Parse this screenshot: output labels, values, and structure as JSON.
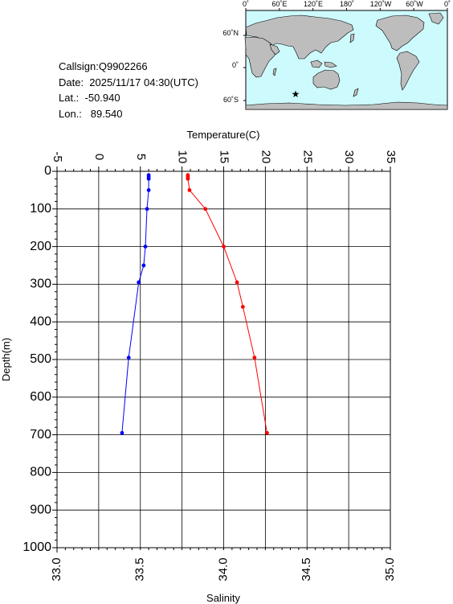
{
  "info": {
    "callsign": "Callsign:Q9902266",
    "date": "Date:  2025/11/17 04:30(UTC)",
    "lat": "Lat.:  -50.940",
    "lon": "Lon.:   89.540"
  },
  "map": {
    "lon_ticks": [
      "0˚",
      "60˚E",
      "120˚E",
      "180˚",
      "120˚W",
      "60˚W",
      "0˚"
    ],
    "lat_ticks": [
      "60˚N",
      "0˚",
      "60˚S"
    ],
    "station_marker": {
      "lon": 89.54,
      "lat": -50.94,
      "symbol": "★"
    },
    "colors": {
      "ocean": "#cdfafd",
      "land": "#bdbdbd",
      "marker": "#ff0000"
    }
  },
  "chart_data": {
    "type": "line",
    "xlabel_top": "Temperature(C)",
    "xlabel_bottom": "Salinity",
    "ylabel": "Depth(m)",
    "temperature_axis": {
      "range": [
        -5,
        35
      ],
      "ticks": [
        "-5",
        "0",
        "5",
        "10",
        "15",
        "20",
        "25",
        "30",
        "35"
      ]
    },
    "salinity_axis": {
      "range": [
        33.0,
        35.0
      ],
      "ticks": [
        "33.0",
        "33.5",
        "34.0",
        "34.5",
        "35.0"
      ]
    },
    "depth_axis": {
      "range": [
        0,
        1000
      ],
      "inverted": true,
      "ticks": [
        "0",
        "100",
        "200",
        "300",
        "400",
        "500",
        "600",
        "700",
        "800",
        "900",
        "1000"
      ]
    },
    "grid": true,
    "series": [
      {
        "quantity": "temperature",
        "color": "#ff0000",
        "points": [
          {
            "value": 10.7,
            "depth": 10
          },
          {
            "value": 10.7,
            "depth": 15
          },
          {
            "value": 10.7,
            "depth": 20
          },
          {
            "value": 10.9,
            "depth": 50
          },
          {
            "value": 12.8,
            "depth": 100
          },
          {
            "value": 15.0,
            "depth": 200
          },
          {
            "value": 16.6,
            "depth": 295
          },
          {
            "value": 17.3,
            "depth": 360
          },
          {
            "value": 18.7,
            "depth": 495
          },
          {
            "value": 20.2,
            "depth": 695
          }
        ]
      },
      {
        "quantity": "salinity",
        "color": "#0000ff",
        "points": [
          {
            "value": 33.55,
            "depth": 10
          },
          {
            "value": 33.55,
            "depth": 15
          },
          {
            "value": 33.55,
            "depth": 20
          },
          {
            "value": 33.55,
            "depth": 50
          },
          {
            "value": 33.54,
            "depth": 100
          },
          {
            "value": 33.53,
            "depth": 200
          },
          {
            "value": 33.52,
            "depth": 250
          },
          {
            "value": 33.49,
            "depth": 295
          },
          {
            "value": 33.43,
            "depth": 495
          },
          {
            "value": 33.39,
            "depth": 695
          }
        ]
      }
    ]
  }
}
